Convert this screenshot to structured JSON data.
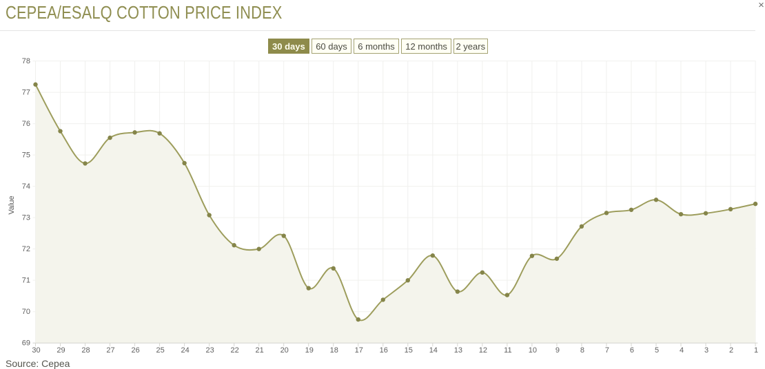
{
  "page": {
    "title": "CEPEA/ESALQ COTTON PRICE INDEX",
    "close_label": "×",
    "source_note": "Source: Cepea"
  },
  "range_buttons": [
    {
      "label": "30 days",
      "selected": true
    },
    {
      "label": "60 days",
      "selected": false
    },
    {
      "label": "6 months",
      "selected": false
    },
    {
      "label": "12 months",
      "selected": false
    },
    {
      "label": "2 years",
      "selected": false
    }
  ],
  "colors": {
    "accent_olive": "#8e8b4b",
    "title": "#8f8e51",
    "line": "#9d9d5c",
    "marker": "#85854a",
    "area_fill": "#f4f4ec",
    "grid": "#f0f0ee",
    "axis_line": "#d6d6d0",
    "tick_label": "#606060",
    "button_border": "#a3a172",
    "button_text": "#4b4b42",
    "selected_text": "#fffff0"
  },
  "chart_data": {
    "type": "area",
    "title": "",
    "xlabel": "",
    "ylabel": "Value",
    "x": [
      30,
      29,
      28,
      27,
      26,
      25,
      24,
      23,
      22,
      21,
      20,
      19,
      18,
      17,
      16,
      15,
      14,
      13,
      12,
      11,
      10,
      9,
      8,
      7,
      6,
      5,
      4,
      3,
      2,
      1
    ],
    "values": [
      77.25,
      75.76,
      74.73,
      75.55,
      75.72,
      75.69,
      74.74,
      73.08,
      72.12,
      72.0,
      72.42,
      70.75,
      71.38,
      69.75,
      70.38,
      71.0,
      71.79,
      70.64,
      71.25,
      70.53,
      71.78,
      71.69,
      72.72,
      73.15,
      73.25,
      73.57,
      73.11,
      73.14,
      73.27,
      73.44
    ],
    "ylim": [
      69,
      78
    ],
    "y_ticks": [
      69,
      70,
      71,
      72,
      73,
      74,
      75,
      76,
      77,
      78
    ],
    "grid": true,
    "legend": false,
    "smooth": true
  }
}
